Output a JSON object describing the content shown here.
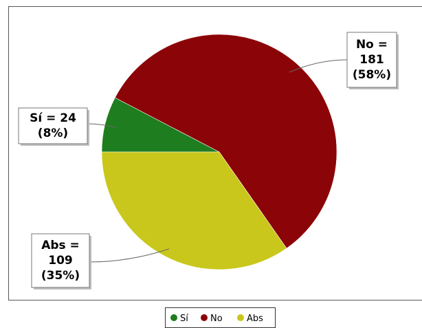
{
  "chart_data": {
    "type": "pie",
    "title": "",
    "slices": [
      {
        "label": "Sí",
        "value": 24,
        "percent": "8%",
        "color": "#1e7d1e",
        "callout": [
          "Sí = 24",
          "(8%)"
        ]
      },
      {
        "label": "No",
        "value": 181,
        "percent": "58%",
        "color": "#8b0508",
        "callout": [
          "No =",
          "181",
          "(58%)"
        ]
      },
      {
        "label": "Abs",
        "value": 109,
        "percent": "35%",
        "color": "#c9c71c",
        "callout": [
          "Abs =",
          "109",
          "(35%)"
        ]
      }
    ],
    "legend": {
      "position": "bottom",
      "entries": [
        "Sí",
        "No",
        "Abs"
      ]
    }
  }
}
